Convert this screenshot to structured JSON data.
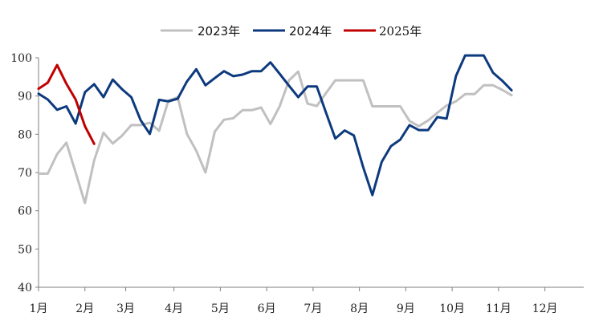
{
  "chart_data": {
    "type": "line",
    "title": "",
    "xlabel": "",
    "ylabel": "",
    "ylim": [
      40,
      100
    ],
    "yticks": [
      40,
      50,
      60,
      70,
      80,
      90,
      100
    ],
    "xlim": [
      0,
      49
    ],
    "x_tick_labels": [
      "1月",
      "2月",
      "3月",
      "4月",
      "5月",
      "6月",
      "7月",
      "8月",
      "9月",
      "10月",
      "11月",
      "12月"
    ],
    "x_tick_positions": [
      0,
      5,
      9.4,
      14.6,
      19.6,
      24.6,
      29.6,
      34.6,
      39.6,
      44.6,
      49.6,
      54.6
    ],
    "legend_position": "top-center",
    "grid": false,
    "series": [
      {
        "name": "2023年",
        "color": "#c0c0c0",
        "values": [
          69.7,
          69.7,
          74.8,
          77.8,
          70,
          62,
          73.2,
          80.4,
          77.6,
          79.6,
          82.4,
          82.4,
          83,
          80.9,
          88.8,
          89.7,
          80.1,
          75.7,
          70,
          80.7,
          83.8,
          84.2,
          86.3,
          86.3,
          87,
          82.7,
          87.3,
          94.1,
          96.4,
          88,
          87.4,
          90.8,
          94.1,
          94.1,
          94.1,
          94.1,
          87.3,
          87.3,
          87.3,
          87.3,
          83.5,
          82.1,
          83.6,
          85.6,
          87.5,
          88.6,
          90.5,
          90.5,
          92.8,
          92.8,
          91.6,
          90.2
        ]
      },
      {
        "name": "2024年",
        "color": "#0d3a7e",
        "values": [
          90.6,
          89.1,
          86.4,
          87.3,
          82.8,
          91,
          93.1,
          89.7,
          94.3,
          91.8,
          89.7,
          83.7,
          80.1,
          89,
          88.6,
          89.3,
          93.8,
          97,
          92.8,
          94.7,
          96.5,
          95.2,
          95.6,
          96.5,
          96.5,
          98.8,
          95.8,
          92.7,
          89.7,
          92.5,
          92.5,
          85.6,
          78.9,
          81,
          79.7,
          71.4,
          64.1,
          72.8,
          76.9,
          78.6,
          82.4,
          81.1,
          81.1,
          84.5,
          84.1,
          95.2,
          100.6,
          100.6,
          100.6,
          96.1,
          94,
          91.5
        ]
      },
      {
        "name": "2025年",
        "color": "#c00000",
        "values": [
          91.9,
          93.5,
          98.1,
          93.2,
          89.1,
          82.1,
          77.5
        ]
      }
    ]
  }
}
